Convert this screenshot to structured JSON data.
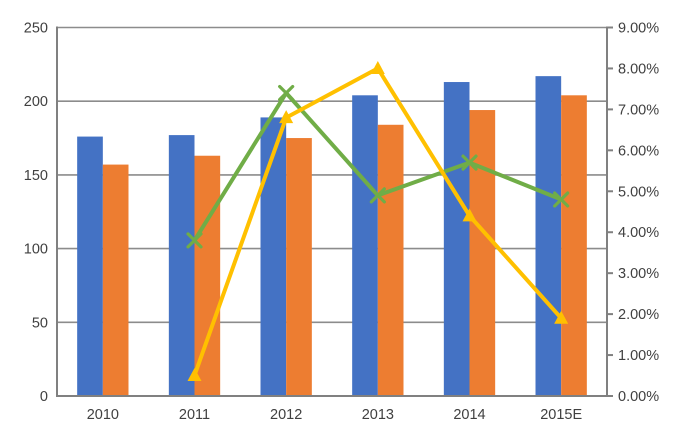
{
  "chart_data": {
    "type": "bar",
    "subtype": "combo-bar-line-dual-axis",
    "title": "",
    "legend": "none",
    "grid": true,
    "categories": [
      "2010",
      "2011",
      "2012",
      "2013",
      "2014",
      "2015E"
    ],
    "bar_series": [
      {
        "name": "blue-bars",
        "color": "#4472C4",
        "axis": "left",
        "values": [
          176,
          177,
          189,
          204,
          213,
          217
        ]
      },
      {
        "name": "orange-bars",
        "color": "#ED7D31",
        "axis": "left",
        "values": [
          157,
          163,
          175,
          184,
          194,
          204
        ]
      }
    ],
    "line_series": [
      {
        "name": "green-growth-line",
        "color": "#70AD47",
        "marker": "x",
        "axis": "right",
        "values": [
          null,
          3.8,
          7.4,
          4.9,
          5.7,
          4.8
        ]
      },
      {
        "name": "yellow-growth-line",
        "color": "#FFC000",
        "marker": "triangle",
        "axis": "right",
        "values": [
          null,
          0.5,
          6.8,
          8.0,
          4.4,
          1.9
        ]
      }
    ],
    "left_axis": {
      "min": 0,
      "max": 250,
      "step": 50,
      "tick_labels": [
        "0",
        "50",
        "100",
        "150",
        "200",
        "250"
      ]
    },
    "right_axis": {
      "min": 0,
      "max": 9,
      "step": 1,
      "tick_labels": [
        "0.00%",
        "1.00%",
        "2.00%",
        "3.00%",
        "4.00%",
        "5.00%",
        "6.00%",
        "7.00%",
        "8.00%",
        "9.00%"
      ]
    },
    "colors": {
      "gridline": "#8C8C8C",
      "axis_line": "#808080",
      "tick_text": "#404040",
      "background": "#FFFFFF"
    }
  }
}
